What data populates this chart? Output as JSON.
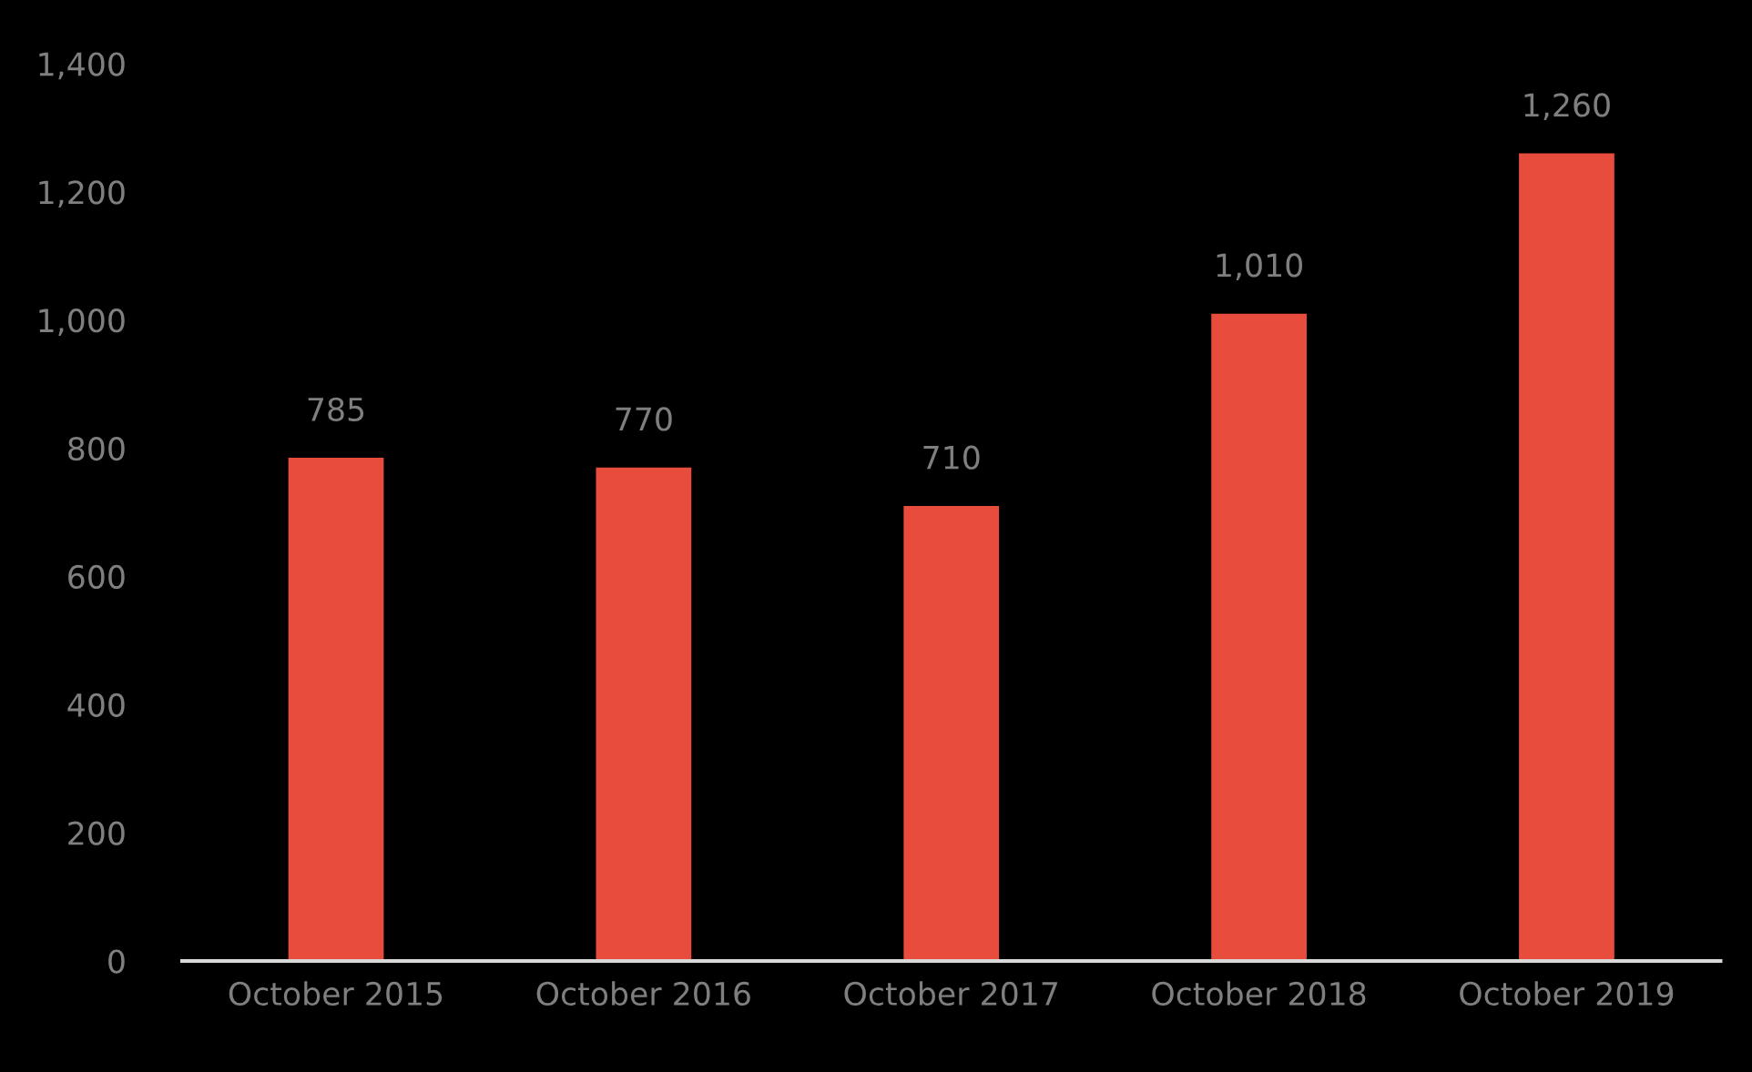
{
  "chart_data": {
    "type": "bar",
    "categories": [
      "October 2015",
      "October 2016",
      "October 2017",
      "October 2018",
      "October 2019"
    ],
    "values": [
      785,
      770,
      710,
      1010,
      1260
    ],
    "color": "#e84c3d",
    "ylim": [
      0,
      1400
    ],
    "yticks": [
      0,
      200,
      400,
      600,
      800,
      {
        "value": 1000,
        "label": "1,000"
      },
      {
        "value": 1200,
        "label": "1,200"
      },
      {
        "value": 1400,
        "label": "1,400"
      }
    ],
    "value_labels": [
      "785",
      "770",
      "710",
      "1,010",
      "1,260"
    ],
    "grid": false,
    "legend": false
  }
}
